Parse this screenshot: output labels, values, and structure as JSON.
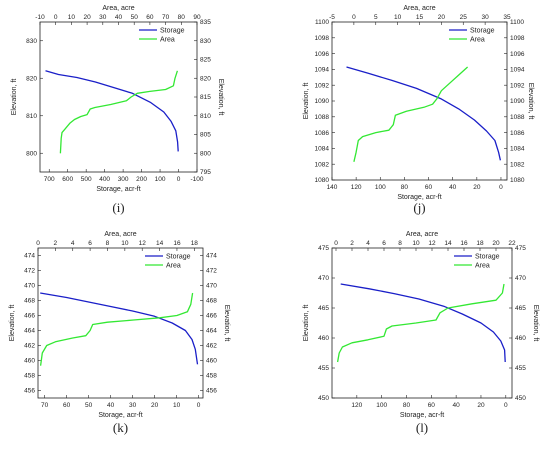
{
  "colors": {
    "storage": "#1a1fc8",
    "area": "#33e833",
    "axis": "#222222"
  },
  "chart_data": [
    {
      "type": "line",
      "panel_label": "(i)",
      "top_xlabel": "Area, acre",
      "bottom_xlabel": "Storage, acr-ft",
      "left_ylabel": "Elevation, ft",
      "right_ylabel": "Elevation, ft",
      "top_ticks": [
        "-10",
        "0",
        "10",
        "20",
        "30",
        "40",
        "50",
        "60",
        "70",
        "80",
        "90"
      ],
      "bottom_ticks": [
        "700",
        "600",
        "500",
        "400",
        "300",
        "200",
        "100",
        "0",
        "-100"
      ],
      "left_ticks": [
        "830",
        "820",
        "810",
        "800"
      ],
      "right_ticks": [
        "835",
        "830",
        "825",
        "820",
        "815",
        "810",
        "805",
        "800",
        "795"
      ],
      "ylim": [
        795,
        835
      ],
      "storage_xlim": [
        750,
        -100
      ],
      "area_xlim": [
        -10,
        90
      ],
      "legend": [
        "Storage",
        "Area"
      ],
      "legend_position": "top-right",
      "series": [
        {
          "name": "Storage",
          "axis": "storage",
          "points": [
            [
              720,
              822
            ],
            [
              650,
              821
            ],
            [
              550,
              820.2
            ],
            [
              450,
              819
            ],
            [
              350,
              817.5
            ],
            [
              250,
              816
            ],
            [
              150,
              813.5
            ],
            [
              80,
              811
            ],
            [
              40,
              808.5
            ],
            [
              15,
              806
            ],
            [
              5,
              803
            ],
            [
              2,
              800.5
            ]
          ]
        },
        {
          "name": "Area",
          "axis": "area",
          "points": [
            [
              3,
              800
            ],
            [
              3.5,
              804
            ],
            [
              4,
              805.5
            ],
            [
              6,
              806.5
            ],
            [
              9,
              808
            ],
            [
              12,
              809
            ],
            [
              16,
              809.8
            ],
            [
              20,
              810.3
            ],
            [
              22,
              811.8
            ],
            [
              25,
              812.2
            ],
            [
              35,
              813
            ],
            [
              45,
              814
            ],
            [
              48,
              815
            ],
            [
              52,
              816
            ],
            [
              60,
              816.5
            ],
            [
              70,
              817
            ],
            [
              75,
              818
            ],
            [
              76,
              820
            ],
            [
              77.5,
              822
            ]
          ]
        }
      ]
    },
    {
      "type": "line",
      "panel_label": "(j)",
      "top_xlabel": "Area, acre",
      "bottom_xlabel": "Storage, acr-ft",
      "left_ylabel": "Elevation, ft",
      "right_ylabel": "Elevation, ft",
      "top_ticks": [
        "-5",
        "0",
        "5",
        "10",
        "15",
        "20",
        "25",
        "30",
        "35"
      ],
      "bottom_ticks": [
        "140",
        "120",
        "100",
        "80",
        "60",
        "40",
        "20",
        "0"
      ],
      "left_ticks": [
        "1100",
        "1098",
        "1096",
        "1094",
        "1092",
        "1090",
        "1088",
        "1086",
        "1084",
        "1082",
        "1080"
      ],
      "right_ticks": [
        "1100",
        "1098",
        "1096",
        "1094",
        "1092",
        "1090",
        "1088",
        "1086",
        "1084",
        "1082",
        "1080"
      ],
      "ylim": [
        1080,
        1100
      ],
      "storage_xlim": [
        140,
        -5
      ],
      "area_xlim": [
        -5,
        35
      ],
      "legend": [
        "Storage",
        "Area"
      ],
      "legend_position": "top-right",
      "series": [
        {
          "name": "Storage",
          "axis": "storage",
          "points": [
            [
              128,
              1094.3
            ],
            [
              110,
              1093.5
            ],
            [
              90,
              1092.6
            ],
            [
              70,
              1091.6
            ],
            [
              50,
              1090.3
            ],
            [
              35,
              1089
            ],
            [
              22,
              1087.6
            ],
            [
              12,
              1086.2
            ],
            [
              5,
              1085
            ],
            [
              2,
              1083.5
            ],
            [
              0.5,
              1082.5
            ]
          ]
        },
        {
          "name": "Area",
          "axis": "area",
          "points": [
            [
              0,
              1082.3
            ],
            [
              0.5,
              1083.5
            ],
            [
              1,
              1085
            ],
            [
              2,
              1085.5
            ],
            [
              5,
              1086
            ],
            [
              8,
              1086.3
            ],
            [
              9,
              1087
            ],
            [
              9.5,
              1088.2
            ],
            [
              12,
              1088.7
            ],
            [
              16,
              1089.2
            ],
            [
              18,
              1089.6
            ],
            [
              19,
              1090.3
            ],
            [
              20,
              1091.3
            ],
            [
              22,
              1092.3
            ],
            [
              24,
              1093.3
            ],
            [
              26,
              1094.3
            ]
          ]
        }
      ]
    },
    {
      "type": "line",
      "panel_label": "(k)",
      "top_xlabel": "Area, acre",
      "bottom_xlabel": "Storage, acr-ft",
      "left_ylabel": "Elevation, ft",
      "right_ylabel": "Elevation, ft",
      "top_ticks": [
        "0",
        "2",
        "4",
        "6",
        "8",
        "10",
        "12",
        "14",
        "16",
        "18"
      ],
      "bottom_ticks": [
        "70",
        "60",
        "50",
        "40",
        "30",
        "20",
        "10",
        "0"
      ],
      "left_ticks": [
        "474",
        "472",
        "470",
        "468",
        "466",
        "464",
        "462",
        "460",
        "458",
        "456"
      ],
      "right_ticks": [
        "474",
        "472",
        "470",
        "468",
        "466",
        "464",
        "462",
        "460",
        "458",
        "456"
      ],
      "ylim": [
        455,
        475
      ],
      "storage_xlim": [
        73,
        -2
      ],
      "area_xlim": [
        0,
        19
      ],
      "legend": [
        "Storage",
        "Area"
      ],
      "legend_position": "top-right",
      "series": [
        {
          "name": "Storage",
          "axis": "storage",
          "points": [
            [
              72,
              469
            ],
            [
              60,
              468.4
            ],
            [
              50,
              467.8
            ],
            [
              40,
              467.2
            ],
            [
              30,
              466.6
            ],
            [
              20,
              465.9
            ],
            [
              12,
              465
            ],
            [
              6,
              464
            ],
            [
              3,
              462.8
            ],
            [
              1.5,
              461.5
            ],
            [
              0.5,
              459.5
            ]
          ]
        },
        {
          "name": "Area",
          "axis": "area",
          "points": [
            [
              0.3,
              459.3
            ],
            [
              0.5,
              461
            ],
            [
              1,
              462
            ],
            [
              2,
              462.5
            ],
            [
              4,
              463
            ],
            [
              5.5,
              463.3
            ],
            [
              6,
              464
            ],
            [
              6.3,
              464.8
            ],
            [
              8,
              465.1
            ],
            [
              11,
              465.4
            ],
            [
              14,
              465.7
            ],
            [
              16,
              466
            ],
            [
              17.2,
              466.5
            ],
            [
              17.6,
              467.5
            ],
            [
              17.8,
              469
            ]
          ]
        }
      ]
    },
    {
      "type": "line",
      "panel_label": "(l)",
      "top_xlabel": "Area, acre",
      "bottom_xlabel": "Storage, acr-ft",
      "left_ylabel": "Elevation, ft",
      "right_ylabel": "Elevation, ft",
      "top_ticks": [
        "0",
        "2",
        "4",
        "6",
        "8",
        "10",
        "12",
        "14",
        "16",
        "18",
        "20",
        "22"
      ],
      "bottom_ticks": [
        "120",
        "100",
        "80",
        "60",
        "40",
        "20",
        "0"
      ],
      "left_ticks": [
        "475",
        "470",
        "465",
        "460",
        "455",
        "450"
      ],
      "right_ticks": [
        "475",
        "470",
        "465",
        "460",
        "455",
        "450"
      ],
      "ylim": [
        450,
        475
      ],
      "storage_xlim": [
        140,
        -5
      ],
      "area_xlim": [
        -0.5,
        22
      ],
      "legend": [
        "Storage",
        "Area"
      ],
      "legend_position": "top-right",
      "series": [
        {
          "name": "Storage",
          "axis": "storage",
          "points": [
            [
              133,
              469
            ],
            [
              110,
              468.2
            ],
            [
              90,
              467.4
            ],
            [
              70,
              466.5
            ],
            [
              50,
              465.3
            ],
            [
              35,
              464
            ],
            [
              20,
              462.5
            ],
            [
              10,
              461
            ],
            [
              4,
              459.5
            ],
            [
              1,
              458
            ],
            [
              0.5,
              456
            ]
          ]
        },
        {
          "name": "Area",
          "axis": "area",
          "points": [
            [
              0.2,
              456
            ],
            [
              0.4,
              457.5
            ],
            [
              0.8,
              458.5
            ],
            [
              2,
              459.2
            ],
            [
              4,
              459.7
            ],
            [
              6,
              460.3
            ],
            [
              6.3,
              461.5
            ],
            [
              7,
              462
            ],
            [
              10,
              462.5
            ],
            [
              12.5,
              463
            ],
            [
              13,
              464.2
            ],
            [
              14,
              465
            ],
            [
              17,
              465.7
            ],
            [
              20,
              466.3
            ],
            [
              20.8,
              467.5
            ],
            [
              21,
              469
            ]
          ]
        }
      ]
    }
  ]
}
